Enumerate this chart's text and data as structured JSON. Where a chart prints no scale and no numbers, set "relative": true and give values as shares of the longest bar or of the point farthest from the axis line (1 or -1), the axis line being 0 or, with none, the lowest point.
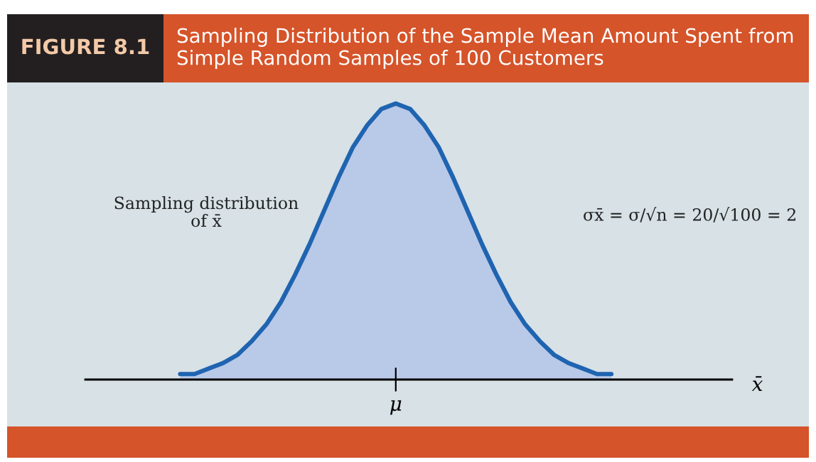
{
  "chart_data": {
    "type": "area",
    "relative": true,
    "title": "FIGURE 8.1",
    "subtitle": "Sampling Distribution of the Sample Mean Amount Spent from Simple Random Samples of 100 Customers",
    "annotations": [
      "Sampling distribution\nof x̄",
      "σx̄ = σ/√n = 20/√100 = 2",
      "μ",
      "x̄"
    ],
    "categories": [
      null,
      null,
      null,
      null,
      null,
      null,
      null,
      null,
      null,
      null,
      null,
      null,
      null,
      null,
      null,
      null,
      null,
      null,
      null,
      null,
      null,
      null,
      null,
      null,
      null,
      null,
      null,
      null,
      null,
      null,
      null
    ],
    "series": [
      {
        "color": "#1f64b0",
        "values": [
          0.02,
          0.02,
          0.04,
          0.06,
          0.09,
          0.14,
          0.2,
          0.28,
          0.38,
          0.49,
          0.61,
          0.73,
          0.84,
          0.92,
          0.98,
          1.0,
          0.98,
          0.92,
          0.84,
          0.73,
          0.61,
          0.49,
          0.38,
          0.28,
          0.2,
          0.14,
          0.09,
          0.06,
          0.04,
          0.02,
          0.02
        ]
      }
    ]
  }
}
